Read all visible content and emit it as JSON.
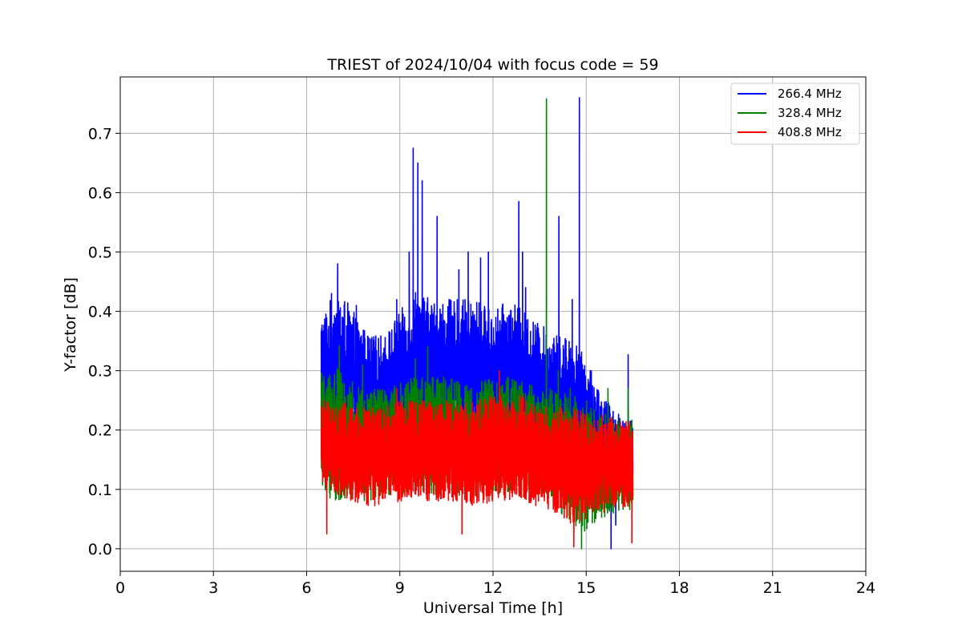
{
  "chart_data": {
    "type": "line",
    "title": "TRIEST of 2024/10/04 with focus code = 59",
    "xlabel": "Universal Time [h]",
    "ylabel": "Y-factor [dB]",
    "xlim": [
      0,
      24
    ],
    "ylim": [
      -0.038,
      0.795
    ],
    "xticks": [
      0,
      3,
      6,
      9,
      12,
      15,
      18,
      21,
      24
    ],
    "yticks": [
      0.0,
      0.1,
      0.2,
      0.3,
      0.4,
      0.5,
      0.6,
      0.7
    ],
    "ytick_labels": [
      "0.0",
      "0.1",
      "0.2",
      "0.3",
      "0.4",
      "0.5",
      "0.6",
      "0.7"
    ],
    "grid": true,
    "legend": "top-right",
    "time_range": [
      6.47,
      16.5
    ],
    "series": [
      {
        "name": "266.4 MHz",
        "color": "#0000ff",
        "envelope_x": [
          6.5,
          7.0,
          7.5,
          8.0,
          8.5,
          9.0,
          9.5,
          10.0,
          10.5,
          11.0,
          11.5,
          12.0,
          12.5,
          13.0,
          13.5,
          14.0,
          14.5,
          15.0,
          15.5,
          16.0,
          16.5
        ],
        "envelope_high": [
          0.4,
          0.44,
          0.4,
          0.36,
          0.36,
          0.4,
          0.44,
          0.42,
          0.42,
          0.42,
          0.42,
          0.4,
          0.42,
          0.4,
          0.38,
          0.36,
          0.36,
          0.32,
          0.26,
          0.23,
          0.22
        ],
        "envelope_low": [
          0.14,
          0.15,
          0.17,
          0.17,
          0.17,
          0.17,
          0.18,
          0.18,
          0.18,
          0.18,
          0.17,
          0.18,
          0.18,
          0.17,
          0.17,
          0.17,
          0.15,
          0.13,
          0.12,
          0.11,
          0.11
        ],
        "peaks": [
          [
            6.8,
            0.43
          ],
          [
            7.0,
            0.48
          ],
          [
            7.6,
            0.41
          ],
          [
            8.9,
            0.42
          ],
          [
            9.3,
            0.5
          ],
          [
            9.43,
            0.675
          ],
          [
            9.58,
            0.65
          ],
          [
            9.72,
            0.62
          ],
          [
            10.2,
            0.56
          ],
          [
            10.9,
            0.47
          ],
          [
            11.2,
            0.5
          ],
          [
            11.6,
            0.49
          ],
          [
            11.85,
            0.5
          ],
          [
            12.83,
            0.585
          ],
          [
            12.95,
            0.5
          ],
          [
            13.05,
            0.44
          ],
          [
            14.12,
            0.56
          ],
          [
            14.78,
            0.76
          ],
          [
            14.55,
            0.42
          ],
          [
            15.13,
            0.3
          ],
          [
            16.35,
            0.327
          ]
        ],
        "troughs": [
          [
            15.8,
            0.0
          ],
          [
            15.95,
            0.04
          ]
        ]
      },
      {
        "name": "328.4 MHz",
        "color": "#008000",
        "envelope_x": [
          6.5,
          7.0,
          7.5,
          8.0,
          8.5,
          9.0,
          9.5,
          10.0,
          10.5,
          11.0,
          11.5,
          12.0,
          12.5,
          13.0,
          13.5,
          14.0,
          14.5,
          15.0,
          15.5,
          16.0,
          16.5
        ],
        "envelope_high": [
          0.3,
          0.31,
          0.28,
          0.27,
          0.27,
          0.28,
          0.29,
          0.29,
          0.29,
          0.28,
          0.28,
          0.29,
          0.29,
          0.28,
          0.27,
          0.27,
          0.27,
          0.25,
          0.23,
          0.22,
          0.22
        ],
        "envelope_low": [
          0.09,
          0.08,
          0.08,
          0.08,
          0.09,
          0.09,
          0.09,
          0.09,
          0.09,
          0.09,
          0.09,
          0.09,
          0.09,
          0.09,
          0.08,
          0.07,
          0.04,
          0.03,
          0.05,
          0.06,
          0.06
        ],
        "peaks": [
          [
            7.05,
            0.342
          ],
          [
            7.8,
            0.31
          ],
          [
            9.5,
            0.32
          ],
          [
            9.9,
            0.34
          ],
          [
            13.72,
            0.758
          ],
          [
            14.1,
            0.3
          ],
          [
            15.7,
            0.27
          ],
          [
            16.35,
            0.27
          ]
        ],
        "troughs": [
          [
            14.85,
            0.0
          ],
          [
            14.6,
            0.04
          ],
          [
            14.95,
            0.03
          ]
        ]
      },
      {
        "name": "408.8 MHz",
        "color": "#ff0000",
        "envelope_x": [
          6.5,
          7.0,
          7.5,
          8.0,
          8.5,
          9.0,
          9.5,
          10.0,
          10.5,
          11.0,
          11.5,
          12.0,
          12.5,
          13.0,
          13.5,
          14.0,
          14.5,
          15.0,
          15.5,
          16.0,
          16.5
        ],
        "envelope_high": [
          0.25,
          0.25,
          0.24,
          0.24,
          0.24,
          0.25,
          0.25,
          0.25,
          0.25,
          0.25,
          0.25,
          0.26,
          0.26,
          0.26,
          0.25,
          0.24,
          0.24,
          0.23,
          0.23,
          0.22,
          0.22
        ],
        "envelope_low": [
          0.1,
          0.09,
          0.08,
          0.07,
          0.07,
          0.08,
          0.08,
          0.08,
          0.08,
          0.08,
          0.07,
          0.08,
          0.08,
          0.08,
          0.07,
          0.06,
          0.04,
          0.05,
          0.06,
          0.07,
          0.07
        ],
        "peaks": [
          [
            12.2,
            0.3
          ],
          [
            8.9,
            0.27
          ]
        ],
        "troughs": [
          [
            6.65,
            0.025
          ],
          [
            14.6,
            0.003
          ],
          [
            11.0,
            0.025
          ],
          [
            16.47,
            0.01
          ]
        ]
      }
    ]
  }
}
